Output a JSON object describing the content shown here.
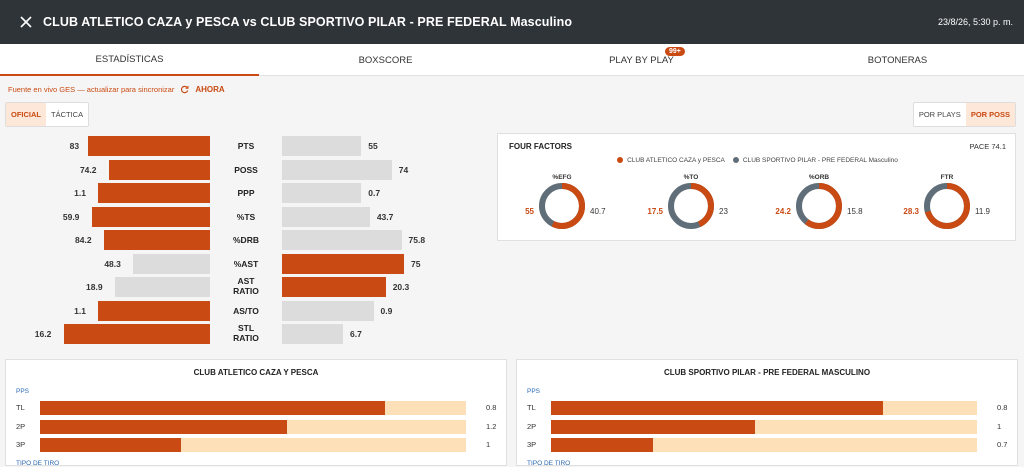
{
  "header": {
    "title": "CLUB ATLETICO CAZA y PESCA vs CLUB SPORTIVO PILAR - PRE FEDERAL Masculino",
    "datetime": "23/8/26, 5:30 p. m."
  },
  "tabs": [
    {
      "label": "ESTADÍSTICAS",
      "active": true
    },
    {
      "label": "BOXSCORE",
      "active": false
    },
    {
      "label": "PLAY BY PLAY",
      "active": false,
      "badge": "99+"
    },
    {
      "label": "BOTONERAS",
      "active": false
    }
  ],
  "source": {
    "text": "Fuente en vivo GES — actualizar para sincronizar",
    "action": "AHORA"
  },
  "view_toggle": [
    "OFICIAL",
    "TÁCTICA"
  ],
  "mode_toggle": [
    "POR PLAYS",
    "POR POSS"
  ],
  "colors": {
    "home": "#c94a12",
    "away": "#5f6e78",
    "neutral_bar": "#dcdcdc"
  },
  "comparison": [
    {
      "label": "PTS",
      "home": "83",
      "away": "55",
      "home_frac": 1.0,
      "away_frac": 0.65,
      "home_leads": true
    },
    {
      "label": "POSS",
      "home": "74.2",
      "away": "74",
      "home_frac": 0.83,
      "away_frac": 0.9,
      "home_leads": true
    },
    {
      "label": "PPP",
      "home": "1.1",
      "away": "0.7",
      "home_frac": 0.92,
      "away_frac": 0.65,
      "home_leads": true
    },
    {
      "label": "%TS",
      "home": "59.9",
      "away": "43.7",
      "home_frac": 0.97,
      "away_frac": 0.72,
      "home_leads": true
    },
    {
      "label": "%DRB",
      "home": "84.2",
      "away": "75.8",
      "home_frac": 0.87,
      "away_frac": 0.98,
      "home_leads": true
    },
    {
      "label": "%AST",
      "home": "48.3",
      "away": "75",
      "home_frac": 0.63,
      "away_frac": 1.0,
      "home_leads": false
    },
    {
      "label": "AST RATIO",
      "home": "18.9",
      "away": "20.3",
      "home_frac": 0.78,
      "away_frac": 0.85,
      "home_leads": false
    },
    {
      "label": "AS/TO",
      "home": "1.1",
      "away": "0.9",
      "home_frac": 0.92,
      "away_frac": 0.75,
      "home_leads": true
    },
    {
      "label": "STL RATIO",
      "home": "16.2",
      "away": "6.7",
      "home_frac": 1.2,
      "away_frac": 0.5,
      "home_leads": true
    }
  ],
  "four_factors": {
    "title": "FOUR FACTORS",
    "pace": "PACE 74.1",
    "legend_home": "CLUB ATLETICO CAZA y PESCA",
    "legend_away": "CLUB SPORTIVO PILAR - PRE FEDERAL Masculino",
    "items": [
      {
        "label": "%EFG",
        "home": "55",
        "away": "40.7",
        "home_value": 55,
        "away_value": 40.7
      },
      {
        "label": "%TO",
        "home": "17.5",
        "away": "23",
        "home_value": 17.5,
        "away_value": 23
      },
      {
        "label": "%ORB",
        "home": "24.2",
        "away": "15.8",
        "home_value": 24.2,
        "away_value": 15.8
      },
      {
        "label": "FTR",
        "home": "28.3",
        "away": "11.9",
        "home_value": 28.3,
        "away_value": 11.9
      }
    ]
  },
  "panels": [
    {
      "title": "CLUB ATLETICO CAZA Y PESCA",
      "pps_label": "PPS",
      "tipo_label": "TIPO DE TIRO",
      "rows": [
        {
          "label": "TL",
          "value": "0.8",
          "fill": 0.81
        },
        {
          "label": "2P",
          "value": "1.2",
          "fill": 0.58
        },
        {
          "label": "3P",
          "value": "1",
          "fill": 0.33
        }
      ]
    },
    {
      "title": "CLUB SPORTIVO PILAR - PRE FEDERAL MASCULINO",
      "pps_label": "PPS",
      "tipo_label": "TIPO DE TIRO",
      "rows": [
        {
          "label": "TL",
          "value": "0.8",
          "fill": 0.78
        },
        {
          "label": "2P",
          "value": "1",
          "fill": 0.48
        },
        {
          "label": "3P",
          "value": "0.7",
          "fill": 0.24
        }
      ]
    }
  ]
}
